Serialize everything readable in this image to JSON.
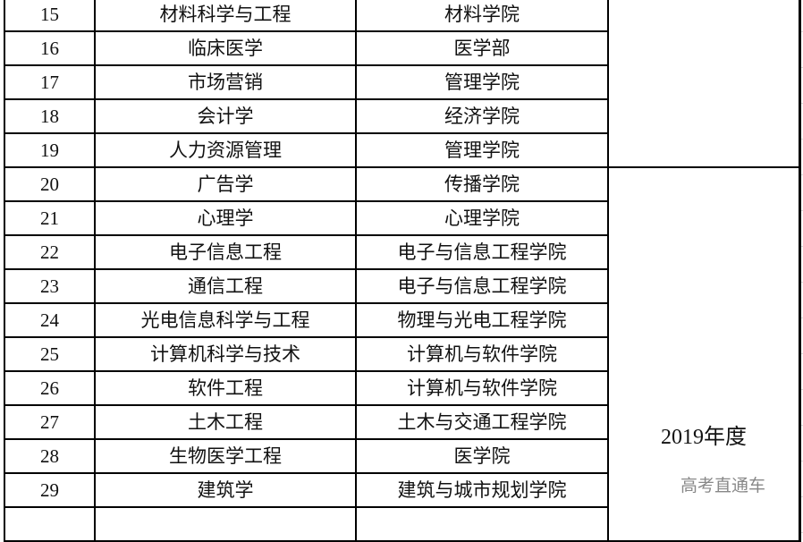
{
  "rows": [
    {
      "no": "15",
      "major": "材料科学与工程",
      "college": "材料学院"
    },
    {
      "no": "16",
      "major": "临床医学",
      "college": "医学部"
    },
    {
      "no": "17",
      "major": "市场营销",
      "college": "管理学院"
    },
    {
      "no": "18",
      "major": "会计学",
      "college": "经济学院"
    },
    {
      "no": "19",
      "major": "人力资源管理",
      "college": "管理学院"
    },
    {
      "no": "20",
      "major": "广告学",
      "college": "传播学院"
    },
    {
      "no": "21",
      "major": "心理学",
      "college": "心理学院"
    },
    {
      "no": "22",
      "major": "电子信息工程",
      "college": "电子与信息工程学院"
    },
    {
      "no": "23",
      "major": "通信工程",
      "college": "电子与信息工程学院"
    },
    {
      "no": "24",
      "major": "光电信息科学与工程",
      "college": "物理与光电工程学院"
    },
    {
      "no": "25",
      "major": "计算机科学与技术",
      "college": "计算机与软件学院"
    },
    {
      "no": "26",
      "major": "软件工程",
      "college": "计算机与软件学院"
    },
    {
      "no": "27",
      "major": "土木工程",
      "college": "土木与交通工程学院"
    },
    {
      "no": "28",
      "major": "生物医学工程",
      "college": "医学院"
    },
    {
      "no": "29",
      "major": "建筑学",
      "college": "建筑与城市规划学院"
    }
  ],
  "year_group": "2019年度",
  "watermark": "高考直通车"
}
